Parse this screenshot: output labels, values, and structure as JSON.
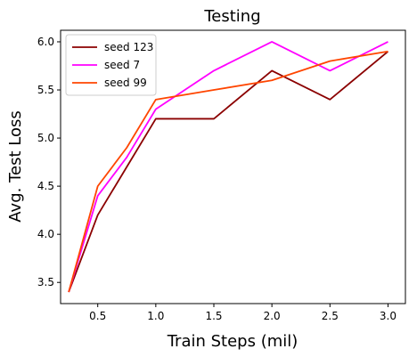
{
  "chart_data": {
    "type": "line",
    "title": "Testing",
    "xlabel": "Train Steps (mil)",
    "ylabel": "Avg. Test Loss",
    "x": [
      0.25,
      0.5,
      0.75,
      1.0,
      1.5,
      2.0,
      2.5,
      3.0
    ],
    "xlim": [
      0.18,
      3.15
    ],
    "ylim": [
      3.28,
      6.12
    ],
    "xticks": [
      0.5,
      1.0,
      1.5,
      2.0,
      2.5,
      3.0
    ],
    "xtick_labels": [
      "0.5",
      "1.0",
      "1.5",
      "2.0",
      "2.5",
      "3.0"
    ],
    "yticks": [
      3.5,
      4.0,
      4.5,
      5.0,
      5.5,
      6.0
    ],
    "ytick_labels": [
      "3.5",
      "4.0",
      "4.5",
      "5.0",
      "5.5",
      "6.0"
    ],
    "grid": false,
    "legend_position": "top-left",
    "series": [
      {
        "name": "seed 123",
        "color": "#8b0000",
        "values": [
          3.4,
          4.2,
          4.7,
          5.2,
          5.2,
          5.7,
          5.4,
          5.9
        ]
      },
      {
        "name": "seed 7",
        "color": "#ff00ff",
        "values": [
          3.4,
          4.4,
          4.8,
          5.3,
          5.7,
          6.0,
          5.7,
          6.0
        ]
      },
      {
        "name": "seed 99",
        "color": "#ff4500",
        "values": [
          3.4,
          4.5,
          4.9,
          5.4,
          5.5,
          5.6,
          5.8,
          5.9
        ]
      }
    ]
  }
}
